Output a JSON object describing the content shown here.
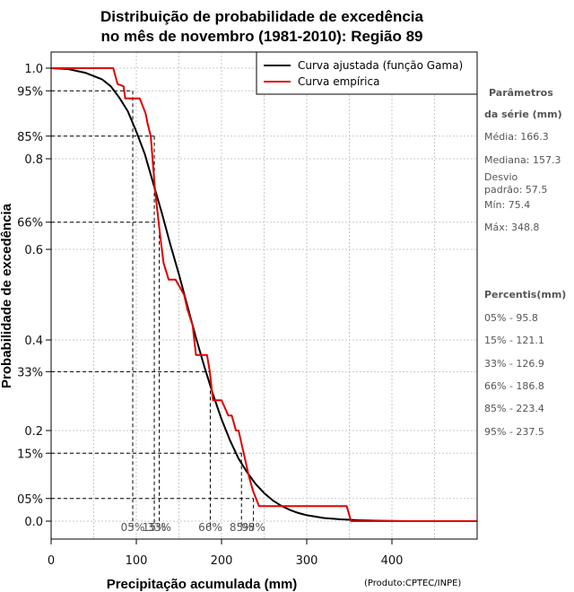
{
  "chart_data": {
    "type": "line",
    "title": [
      "Distribuição de probabilidade de excedência",
      "no mês de novembro (1981-2010): Região 89"
    ],
    "xlabel": "Precipitação acumulada (mm)",
    "ylabel": "Probabilidade de excedência",
    "source": "(Produto:CPTEC/INPE)",
    "xlim": [
      0,
      500
    ],
    "ylim": [
      0.0,
      1.0
    ],
    "x_ticks": [
      0,
      100,
      200,
      300,
      400
    ],
    "y_ticks": [
      {
        "value": 0.0,
        "label": "0.0"
      },
      {
        "value": 0.2,
        "label": "0.2"
      },
      {
        "value": 0.4,
        "label": "0.4"
      },
      {
        "value": 0.6,
        "label": "0.6"
      },
      {
        "value": 0.8,
        "label": "0.8"
      },
      {
        "value": 1.0,
        "label": "1.0"
      }
    ],
    "y_pct_ticks": [
      {
        "value": 0.05,
        "label": "05%"
      },
      {
        "value": 0.15,
        "label": "15%"
      },
      {
        "value": 0.33,
        "label": "33%"
      },
      {
        "value": 0.66,
        "label": "66%"
      },
      {
        "value": 0.85,
        "label": "85%"
      },
      {
        "value": 0.95,
        "label": "95%"
      }
    ],
    "grid": true,
    "legend": {
      "position": "top-right",
      "entries": [
        {
          "label": "Curva ajustada (função Gama)",
          "color": "#000000"
        },
        {
          "label": "Curva empírica",
          "color": "#e00000"
        }
      ]
    },
    "series": [
      {
        "name": "Curva ajustada (função Gama)",
        "color": "#000000",
        "x": [
          0,
          20,
          40,
          60,
          70,
          80,
          90,
          100,
          110,
          120,
          130,
          140,
          150,
          160,
          170,
          180,
          190,
          200,
          210,
          220,
          230,
          240,
          250,
          260,
          270,
          280,
          290,
          300,
          320,
          340,
          360,
          380,
          400,
          420
        ],
        "y": [
          1.0,
          0.998,
          0.99,
          0.975,
          0.96,
          0.935,
          0.905,
          0.86,
          0.81,
          0.745,
          0.68,
          0.61,
          0.545,
          0.475,
          0.405,
          0.34,
          0.28,
          0.225,
          0.178,
          0.138,
          0.108,
          0.082,
          0.062,
          0.046,
          0.034,
          0.025,
          0.018,
          0.013,
          0.007,
          0.004,
          0.002,
          0.001,
          0.0005,
          0.0
        ]
      },
      {
        "name": "Curva empírica",
        "color": "#e00000",
        "x": [
          0,
          73,
          78,
          85,
          87,
          104,
          111,
          113,
          117,
          122,
          128,
          132,
          138,
          141,
          146,
          156,
          160,
          166,
          168,
          170,
          178,
          183,
          186,
          188,
          190,
          200,
          208,
          212,
          217,
          220,
          224,
          232,
          237,
          244,
          290,
          347,
          352,
          360,
          410,
          500
        ],
        "y": [
          1.0,
          1.0,
          0.965,
          0.96,
          0.933,
          0.933,
          0.9,
          0.88,
          0.85,
          0.73,
          0.63,
          0.57,
          0.533,
          0.533,
          0.533,
          0.5,
          0.467,
          0.433,
          0.4,
          0.367,
          0.367,
          0.367,
          0.333,
          0.3,
          0.267,
          0.267,
          0.233,
          0.233,
          0.2,
          0.2,
          0.167,
          0.1,
          0.067,
          0.033,
          0.033,
          0.033,
          0.0,
          0.0,
          0.0,
          0.0
        ]
      }
    ],
    "percentile_markers": [
      {
        "label": "05%",
        "x": 95.8,
        "y": 0.95
      },
      {
        "label": "15%",
        "x": 121.1,
        "y": 0.85
      },
      {
        "label": "33%",
        "x": 126.9,
        "y": 0.66
      },
      {
        "label": "66%",
        "x": 186.8,
        "y": 0.33
      },
      {
        "label": "85%",
        "x": 223.4,
        "y": 0.15
      },
      {
        "label": "95%",
        "x": 237.5,
        "y": 0.05
      }
    ]
  },
  "stats_panel": {
    "params_heading": [
      "Parâmetros",
      "da série (mm)"
    ],
    "params": [
      "Média: 166.3",
      "Mediana: 157.3",
      "Desvio",
      "padrão: 57.5",
      "Mín: 75.4",
      "Máx: 348.8"
    ],
    "percentiles_heading": "Percentis(mm)",
    "percentiles": [
      "05% - 95.8",
      "15% - 121.1",
      "33% - 126.9",
      "66% - 186.8",
      "85% - 223.4",
      "95% - 237.5"
    ]
  }
}
